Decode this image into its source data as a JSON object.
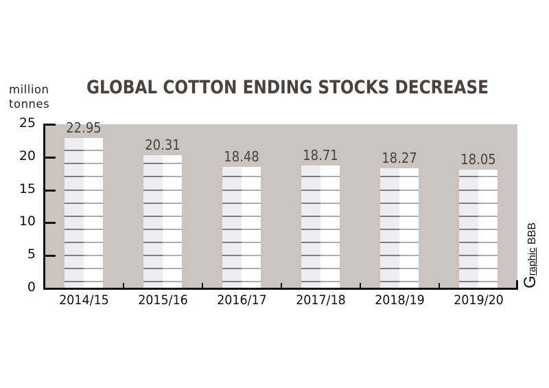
{
  "chart_data": {
    "type": "bar",
    "title": "GLOBAL COTTON ENDING STOCKS DECREASE",
    "ylabel": "million tonnes",
    "xlabel": "",
    "categories": [
      "2014/15",
      "2015/16",
      "2016/17",
      "2017/18",
      "2018/19",
      "2019/20"
    ],
    "values": [
      22.95,
      20.31,
      18.48,
      18.71,
      18.27,
      18.05
    ],
    "value_labels": [
      "22.95",
      "20.31",
      "18.48",
      "18.71",
      "18.27",
      "18.05"
    ],
    "ylim": [
      0,
      25
    ],
    "yticks": [
      "0",
      "5",
      "10",
      "15",
      "20",
      "25"
    ],
    "grid": false,
    "legend": null,
    "colors": {
      "plot_background": "#cbc4c1",
      "bar_left": "#eeeef0",
      "bar_right": "#ffffff",
      "bar_stripe_dark": "#7d7d80",
      "bar_stripe_light": "#adadaf",
      "title": "#4a4240",
      "value_label": "#4a4240"
    }
  },
  "header": {
    "unit_line1": "million",
    "unit_line2": "tonnes",
    "title": "GLOBAL COTTON ENDING STOCKS DECREASE"
  },
  "credit": {
    "g": "G",
    "raphic": "raphic",
    "bbb": " BBB"
  }
}
